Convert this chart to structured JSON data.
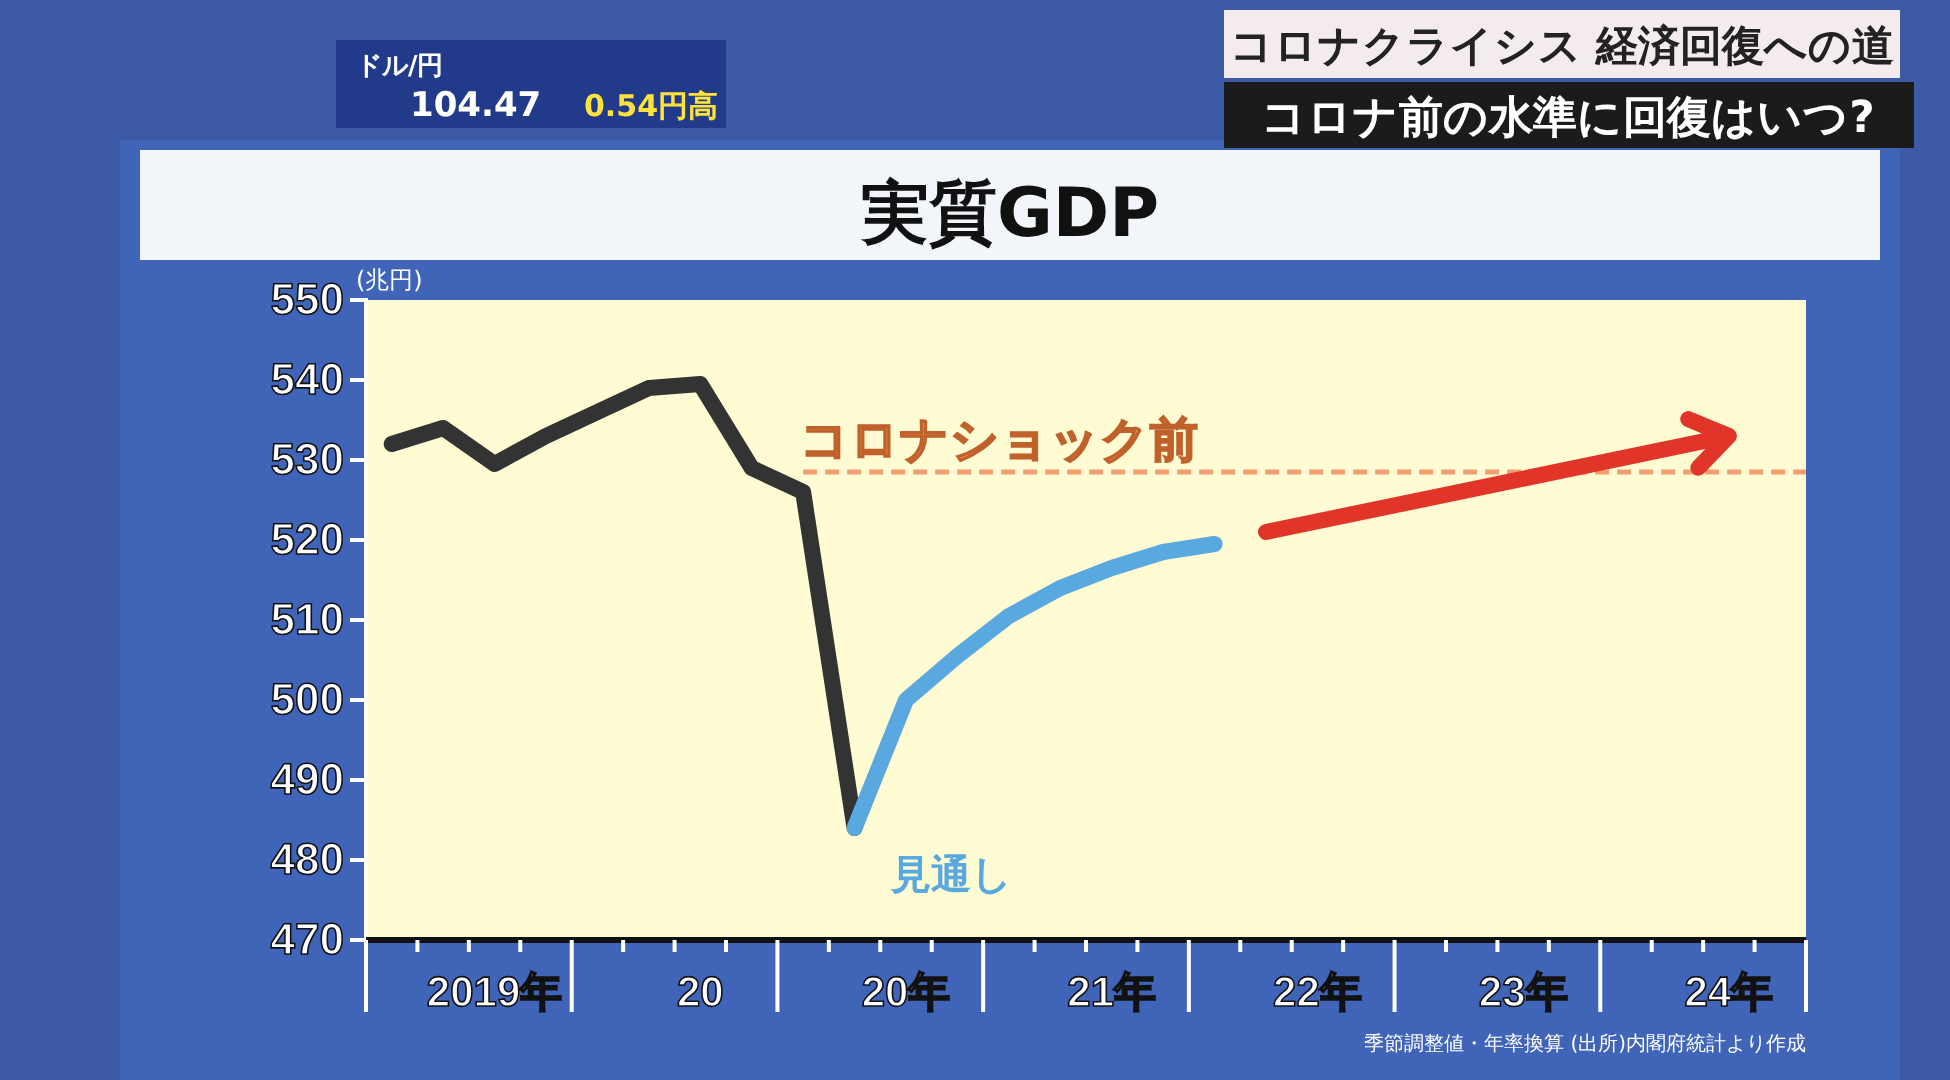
{
  "chart_data": {
    "type": "line",
    "title": "実質GDP",
    "ylabel": "(兆円)",
    "annotations": [
      "コロナクライシス 経済回復への道",
      "コロナ前の水準に回復はいつ?",
      "ドル/円",
      "104.47",
      "0.54円高",
      "季節調整値・年率換算 (出所)内閣府統計より作成"
    ],
    "categories": [
      null,
      null,
      "2019年",
      null,
      null,
      null,
      "20",
      null,
      null,
      null,
      "20年",
      null,
      null,
      null,
      "21年",
      null,
      null,
      null,
      "22年",
      null,
      null,
      null,
      "23年",
      null,
      null,
      null,
      "24年",
      null
    ],
    "ylim": [
      470,
      550
    ],
    "yticks": [
      470,
      480,
      490,
      500,
      510,
      520,
      530,
      540,
      550
    ],
    "ref_lines": [
      {
        "axis": "y",
        "value": 528.5,
        "label": "コロナショック前",
        "color": "#f0a070",
        "line_style": "dashed"
      }
    ],
    "series": [
      {
        "color": "#333333",
        "values": [
          532,
          534,
          529.5,
          533,
          536,
          539,
          539.5,
          529,
          526,
          484,
          null,
          null,
          null,
          null,
          null,
          null,
          null,
          null,
          null,
          null,
          null,
          null,
          null,
          null,
          null,
          null,
          null,
          null
        ]
      },
      {
        "name": "見通し",
        "color": "#5aa8e0",
        "values": [
          null,
          null,
          null,
          null,
          null,
          null,
          null,
          null,
          null,
          484,
          500,
          505.5,
          510.5,
          514,
          516.5,
          518.5,
          519.5,
          null,
          null,
          null,
          null,
          null,
          null,
          null,
          null,
          null,
          null,
          null
        ]
      }
    ]
  }
}
